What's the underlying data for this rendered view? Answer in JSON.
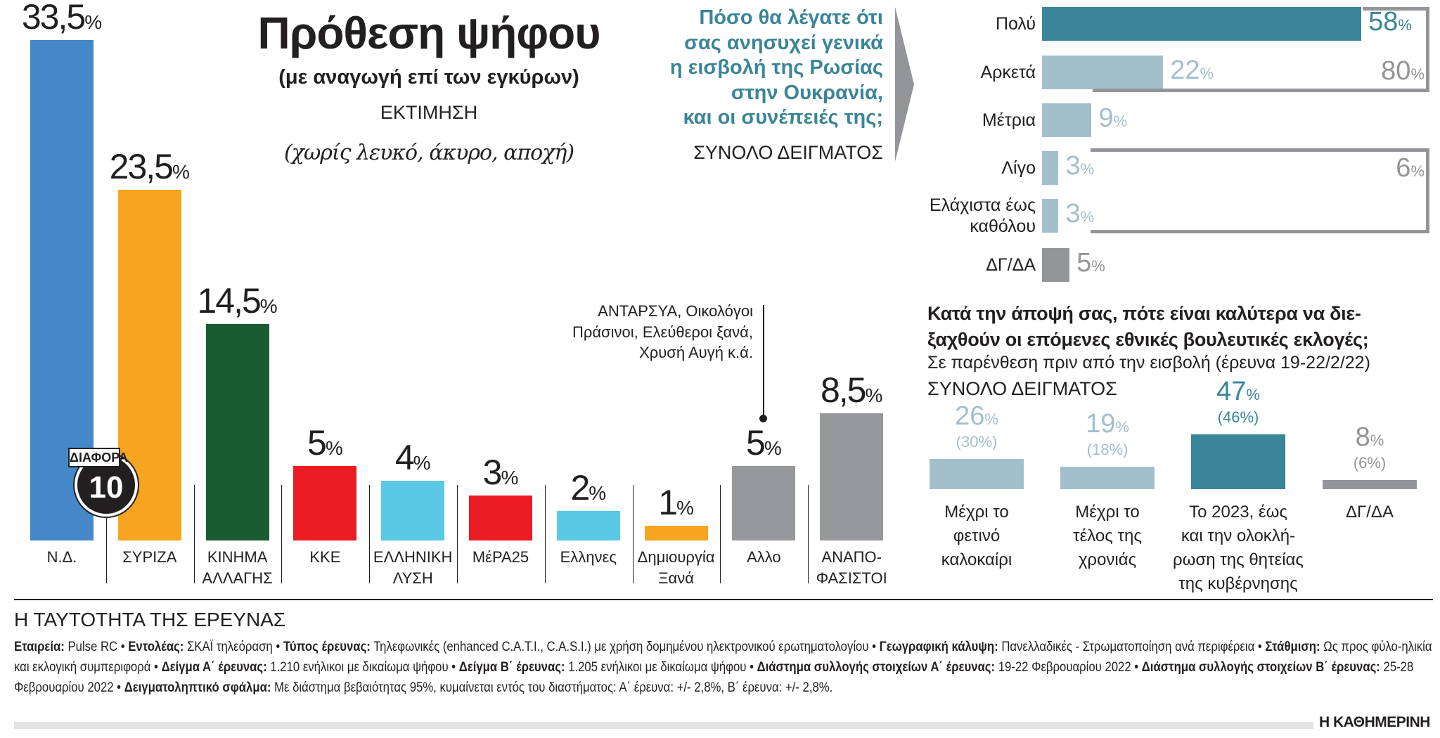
{
  "title": "Πρόθεση ψήφου",
  "subtitle": "(με αναγωγή επί των εγκύρων)",
  "estimate": "ΕΚΤΙΜΗΣΗ",
  "note": "(χωρίς λευκό, άκυρο, αποχή)",
  "difference": {
    "label": "ΔΙΑΦΟΡΑ",
    "value": "10"
  },
  "annotation": "ΑΝΤΑΡΣΥΑ, Οικολόγοι\nΠράσινοι, Ελεύθεροι ξανά,\nΧρυσή Αυγή κ.ά.",
  "chart_data": [
    {
      "type": "bar",
      "title": "Πρόθεση ψήφου",
      "categories": [
        "Ν.Δ.",
        "ΣΥΡΙΖΑ",
        "ΚΙΝΗΜΑ\nΑΛΛΑΓΗΣ",
        "ΚΚΕ",
        "ΕΛΛΗΝΙΚΗ\nΛΥΣΗ",
        "ΜέΡΑ25",
        "Ελληνες",
        "Δημιουργία\nΞανά",
        "Αλλο",
        "ΑΝΑΠΟ-\nΦΑΣΙΣΤΟΙ"
      ],
      "values": [
        33.5,
        23.5,
        14.5,
        5,
        4,
        3,
        2,
        1,
        5,
        8.5
      ],
      "value_labels": [
        "33,5",
        "23,5",
        "14,5",
        "5",
        "4",
        "3",
        "2",
        "1",
        "5",
        "8,5"
      ],
      "unit": "%",
      "colors": [
        "#4488c8",
        "#f7a520",
        "#1a5c32",
        "#ec1c24",
        "#5bc8e6",
        "#ec1c24",
        "#5bc8e6",
        "#f7a520",
        "#97989b",
        "#97989b"
      ]
    },
    {
      "type": "bar",
      "orientation": "horizontal",
      "title": "Πόσο θα λέγατε ότι\nσας ανησυχεί γενικά\nη εισβολή της Ρωσίας\nστην Ουκρανία,\nκαι οι συνέπειές της;",
      "subtitle": "ΣΥΝΟΛΟ ΔΕΙΓΜΑΤΟΣ",
      "categories": [
        "Πολύ",
        "Αρκετά",
        "Μέτρια",
        "Λίγο",
        "Ελάχιστα έως\nκαθόλου",
        "ΔΓ/ΔΑ"
      ],
      "values": [
        58,
        22,
        9,
        3,
        3,
        5
      ],
      "unit": "%",
      "colors": [
        "#3a8597",
        "#a3bfcb",
        "#a3bfcb",
        "#a3bfcb",
        "#a3bfcb",
        "#939598"
      ],
      "groups": [
        {
          "label": "80",
          "members": [
            "Πολύ",
            "Αρκετά"
          ]
        },
        {
          "label": "6",
          "members": [
            "Λίγο",
            "Ελάχιστα έως καθόλου"
          ]
        }
      ]
    },
    {
      "type": "bar",
      "title": "Κατά την άποψή σας, πότε είναι καλύτερα να διε-\nξαχθούν οι επόμενες εθνικές βουλευτικές εκλογές;",
      "subtitle": "Σε παρένθεση πριν από την εισβολή (έρευνα 19-22/2/22)",
      "sample": "ΣΥΝΟΛΟ ΔΕΙΓΜΑΤΟΣ",
      "categories": [
        "Μέχρι το\nφετινό\nκαλοκαίρι",
        "Μέχρι το\nτέλος της\nχρονιάς",
        "Το 2023, έως\nκαι την ολοκλή-\nρωση της θητείας\nτης κυβέρνησης",
        "ΔΓ/ΔΑ"
      ],
      "series": [
        {
          "values": [
            26,
            19,
            47,
            8
          ]
        },
        {
          "values": [
            30,
            18,
            46,
            6
          ]
        }
      ],
      "previous_labels": [
        "(30%)",
        "(18%)",
        "(46%)",
        "(6%)"
      ],
      "unit": "%",
      "colors": [
        "#a3bfcb",
        "#a3bfcb",
        "#3a8597",
        "#939598"
      ]
    }
  ],
  "footer": {
    "heading": "Η ΤΑΥΤΟΤΗΤΑ ΤΗΣ ΕΡΕΥΝΑΣ",
    "items": [
      {
        "k": "Εταιρεία:",
        "v": " Pulse RC • "
      },
      {
        "k": "Εντολέας:",
        "v": " ΣΚΑΪ τηλεόραση • "
      },
      {
        "k": "Τύπος έρευνας:",
        "v": " Τηλεφωνικές (enhanced C.A.T.I., C.A.S.I.) με χρήση δομημένου ηλεκτρονικού ερωτηματολογίου • "
      },
      {
        "k": "Γεωγραφική κάλυψη:",
        "v": " Πανελλαδικές - Στρωματοποίηση ανά περιφέρεια • "
      },
      {
        "k": "Στάθμιση:",
        "v": " Ως προς φύλο-ηλικία και εκλογική συμπεριφορά • "
      },
      {
        "k": "Δείγμα Α΄ έρευνας:",
        "v": " 1.210 ενήλικοι με δικαίωμα ψήφου • "
      },
      {
        "k": "Δείγμα Β΄ έρευνας:",
        "v": " 1.205 ενήλικοι με δικαίωμα ψήφου • "
      },
      {
        "k": "Διάστημα συλλογής στοιχείων Α΄ έρευνας:",
        "v": " 19-22 Φεβρουαρίου 2022 • "
      },
      {
        "k": "Διάστημα συλλογής στοιχείων Β΄ έρευνας:",
        "v": " 25-28 Φεβρουαρίου 2022 • "
      },
      {
        "k": "Δειγματοληπτικό σφάλμα:",
        "v": " Με διάστημα βεβαιότητας 95%, κυμαίνεται εντός του διαστήματος: Α΄ έρευνα: +/- 2,8%, Β΄ έρευνα: +/- 2,8%."
      }
    ],
    "brand": "Η ΚΑΘΗΜΕΡΙΝΗ"
  }
}
